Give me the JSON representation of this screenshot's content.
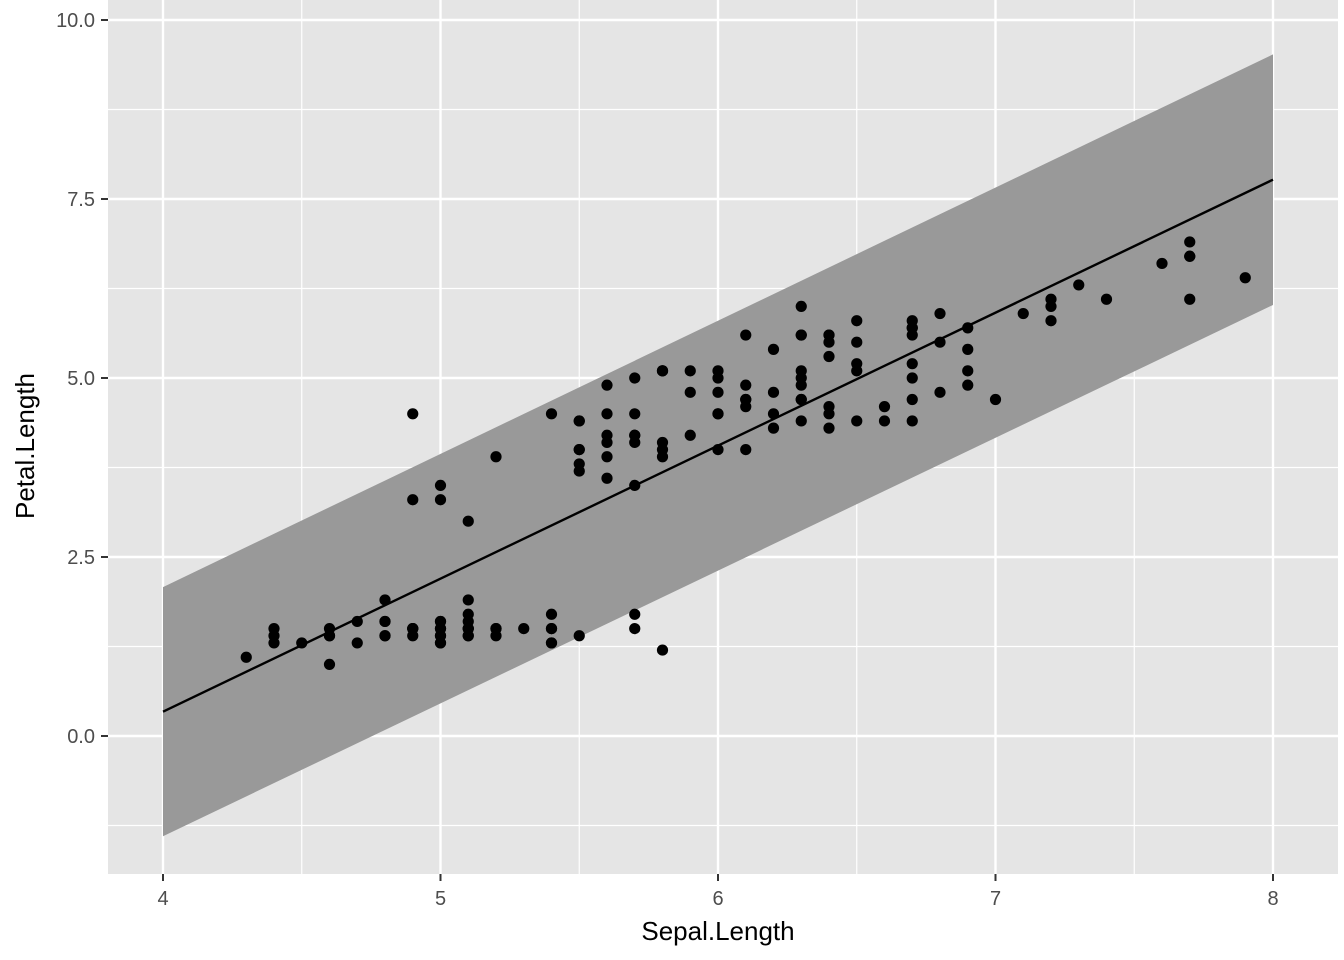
{
  "chart_data": {
    "type": "scatter",
    "title": "",
    "xlabel": "Sepal.Length",
    "ylabel": "Petal.Length",
    "xlim": [
      3.8,
      8.1
    ],
    "ylim": [
      -1.9,
      10.0
    ],
    "x_ticks": [
      4,
      5,
      6,
      7,
      8
    ],
    "x_tick_labels": [
      "4",
      "5",
      "6",
      "7",
      "8"
    ],
    "y_ticks": [
      0,
      2.5,
      5,
      7.5,
      10
    ],
    "y_tick_labels": [
      "0.0",
      "2.5",
      "5.0",
      "7.5",
      "10.0"
    ],
    "grid": true,
    "colors": {
      "panel": "#e5e5e5",
      "grid": "#ffffff",
      "band": "#999999",
      "points": "#000000",
      "line": "#000000"
    },
    "series": [
      {
        "type": "scatter",
        "x": [
          4.3,
          4.4,
          4.4,
          4.4,
          4.5,
          4.6,
          4.6,
          4.6,
          4.6,
          4.7,
          4.7,
          4.8,
          4.8,
          4.8,
          4.8,
          4.8,
          4.9,
          4.9,
          4.9,
          4.9,
          4.9,
          4.9,
          5.0,
          5.0,
          5.0,
          5.0,
          5.0,
          5.0,
          5.0,
          5.0,
          5.0,
          5.0,
          5.1,
          5.1,
          5.1,
          5.1,
          5.1,
          5.1,
          5.1,
          5.1,
          5.1,
          5.2,
          5.2,
          5.2,
          5.2,
          5.3,
          5.4,
          5.4,
          5.4,
          5.4,
          5.4,
          5.4,
          5.5,
          5.5,
          5.5,
          5.5,
          5.5,
          5.5,
          5.5,
          5.6,
          5.6,
          5.6,
          5.6,
          5.6,
          5.6,
          5.7,
          5.7,
          5.7,
          5.7,
          5.7,
          5.7,
          5.7,
          5.7,
          5.8,
          5.8,
          5.8,
          5.8,
          5.8,
          5.8,
          5.8,
          5.9,
          5.9,
          5.9,
          6.0,
          6.0,
          6.0,
          6.0,
          6.0,
          6.0,
          6.1,
          6.1,
          6.1,
          6.1,
          6.1,
          6.1,
          6.2,
          6.2,
          6.2,
          6.2,
          6.3,
          6.3,
          6.3,
          6.3,
          6.3,
          6.3,
          6.3,
          6.3,
          6.3,
          6.4,
          6.4,
          6.4,
          6.4,
          6.4,
          6.4,
          6.4,
          6.5,
          6.5,
          6.5,
          6.5,
          6.5,
          6.6,
          6.6,
          6.7,
          6.7,
          6.7,
          6.7,
          6.7,
          6.7,
          6.7,
          6.7,
          6.8,
          6.8,
          6.8,
          6.9,
          6.9,
          6.9,
          6.9,
          7.0,
          7.1,
          7.2,
          7.2,
          7.2,
          7.3,
          7.4,
          7.6,
          7.7,
          7.7,
          7.7,
          7.7,
          7.9
        ],
        "y": [
          1.1,
          1.4,
          1.3,
          1.5,
          1.3,
          1.4,
          1.5,
          1.0,
          1.4,
          1.3,
          1.6,
          1.6,
          1.4,
          1.9,
          1.4,
          1.6,
          1.4,
          1.5,
          1.5,
          1.5,
          4.5,
          3.3,
          1.4,
          1.5,
          1.4,
          1.6,
          1.6,
          1.5,
          1.3,
          1.3,
          3.5,
          3.3,
          1.5,
          1.4,
          1.7,
          1.5,
          1.9,
          1.5,
          1.4,
          3.0,
          1.6,
          1.5,
          1.5,
          1.4,
          3.9,
          1.5,
          1.7,
          1.5,
          1.3,
          1.5,
          4.5,
          1.3,
          1.4,
          4.0,
          4.4,
          3.7,
          3.8,
          4.0,
          4.4,
          4.2,
          4.1,
          4.5,
          3.6,
          3.9,
          4.9,
          1.5,
          1.7,
          4.5,
          4.2,
          4.1,
          3.5,
          4.2,
          5.0,
          1.2,
          4.1,
          4.0,
          3.9,
          5.1,
          5.1,
          5.1,
          4.2,
          4.8,
          5.1,
          4.5,
          4.0,
          4.8,
          5.1,
          5.0,
          4.5,
          4.7,
          4.6,
          4.0,
          4.9,
          5.6,
          4.7,
          4.5,
          4.3,
          4.8,
          5.4,
          4.7,
          4.4,
          5.0,
          4.9,
          6.0,
          5.1,
          5.6,
          5.6,
          4.7,
          4.5,
          4.3,
          5.3,
          5.5,
          5.6,
          5.6,
          4.6,
          4.4,
          5.8,
          5.5,
          5.2,
          5.1,
          4.6,
          4.4,
          4.4,
          5.0,
          4.7,
          5.6,
          5.8,
          5.7,
          5.2,
          5.7,
          4.8,
          5.9,
          5.5,
          4.9,
          5.4,
          5.1,
          5.7,
          4.7,
          5.9,
          6.0,
          6.1,
          5.8,
          6.3,
          6.1,
          6.6,
          6.7,
          6.9,
          6.7,
          6.1,
          6.4
        ]
      },
      {
        "type": "line",
        "name": "",
        "x": [
          4,
          8
        ],
        "y": [
          0.34,
          7.77
        ]
      },
      {
        "type": "band",
        "x": [
          4,
          8
        ],
        "lower": [
          -1.4,
          6.02
        ],
        "upper": [
          2.08,
          9.52
        ]
      }
    ]
  }
}
